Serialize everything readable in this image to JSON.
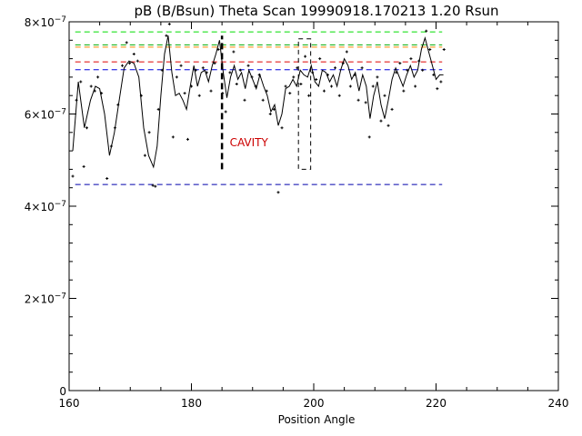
{
  "chart_data": {
    "type": "scatter",
    "title": "pB (B/Bsun) Theta Scan 19990918.170213 1.20 Rsun",
    "xlabel": "Position Angle",
    "ylabel": "",
    "xlim": [
      160,
      240
    ],
    "ylim": [
      0,
      8e-07
    ],
    "x_ticks": [
      160,
      180,
      200,
      220,
      240
    ],
    "y_ticks": [
      {
        "value": 0,
        "mant": "0",
        "exp": ""
      },
      {
        "value": 2e-07,
        "mant": "2×10",
        "exp": "−7"
      },
      {
        "value": 4e-07,
        "mant": "4×10",
        "exp": "−7"
      },
      {
        "value": 6e-07,
        "mant": "6×10",
        "exp": "−7"
      },
      {
        "value": 8e-07,
        "mant": "8×10",
        "exp": "−7"
      }
    ],
    "annotation": {
      "text": "CAVITY",
      "x": 189.4,
      "y": 5.3e-07,
      "color": "#cc0000"
    },
    "reference_lines": [
      {
        "y": 7.78e-07,
        "x": [
          161,
          221
        ],
        "color": "#00dd00"
      },
      {
        "y": 7.5e-07,
        "x": [
          161,
          221
        ],
        "color": "#00aa00"
      },
      {
        "y": 7.45e-07,
        "x": [
          161,
          221
        ],
        "color": "#ff8800"
      },
      {
        "y": 7.13e-07,
        "x": [
          161,
          221
        ],
        "color": "#dd0000"
      },
      {
        "y": 6.96e-07,
        "x": [
          161,
          221
        ],
        "color": "#0000dd"
      },
      {
        "y": 4.47e-07,
        "x": [
          161,
          221
        ],
        "color": "#0000aa"
      }
    ],
    "vertical_marker": {
      "x": 185.0,
      "y": [
        4.8e-07,
        7.7e-07
      ]
    },
    "cavity_box": {
      "x": [
        197.5,
        199.5
      ],
      "y": [
        4.8e-07,
        7.63e-07
      ]
    },
    "series": [
      {
        "kind": "points",
        "x": [
          160.6,
          161.2,
          161.9,
          162.4,
          162.9,
          163.6,
          164.2,
          164.7,
          165.3,
          166.2,
          166.9,
          167.5,
          168.0,
          168.7,
          169.4,
          169.9,
          170.6,
          171.2,
          171.8,
          172.4,
          173.1,
          173.7,
          174.1,
          174.6,
          175.2,
          175.9,
          176.4,
          177.0,
          177.6,
          178.3,
          178.9,
          179.4,
          180.0,
          180.7,
          181.3,
          181.9,
          182.5,
          183.2,
          183.8,
          184.4,
          185.1,
          185.6,
          186.3,
          186.9,
          187.4,
          188.0,
          188.7,
          189.3,
          189.9,
          190.5,
          191.1,
          191.7,
          192.3,
          192.9,
          193.5,
          194.2,
          194.8,
          195.4,
          196.1,
          196.7,
          197.3,
          197.9,
          198.6,
          199.2,
          199.8,
          200.4,
          201.0,
          201.7,
          202.3,
          202.9,
          203.5,
          204.2,
          204.8,
          205.4,
          206.0,
          206.7,
          207.3,
          207.9,
          208.5,
          209.1,
          209.7,
          210.4,
          211.0,
          211.6,
          212.2,
          212.8,
          213.5,
          214.1,
          214.7,
          215.3,
          215.9,
          216.6,
          217.2,
          217.8,
          218.4,
          219.0,
          219.6,
          220.2,
          220.8,
          221.3
        ],
        "y": [
          4.65e-07,
          6.3e-07,
          6.7e-07,
          4.86e-07,
          5.7e-07,
          6.6e-07,
          6.5e-07,
          6.8e-07,
          6.45e-07,
          4.6e-07,
          5.3e-07,
          5.7e-07,
          6.2e-07,
          7.05e-07,
          7.55e-07,
          7.1e-07,
          7.3e-07,
          7.15e-07,
          6.4e-07,
          5.1e-07,
          5.6e-07,
          4.45e-07,
          4.43e-07,
          6.1e-07,
          6.95e-07,
          7.7e-07,
          7.95e-07,
          5.5e-07,
          6.8e-07,
          7.05e-07,
          6.45e-07,
          5.45e-07,
          6.6e-07,
          6.95e-07,
          6.4e-07,
          7e-07,
          6.9e-07,
          6.5e-07,
          7.1e-07,
          7.4e-07,
          6.45e-07,
          6.05e-07,
          6.9e-07,
          7.35e-07,
          6.65e-07,
          6.95e-07,
          6.3e-07,
          7.05e-07,
          6.8e-07,
          6.6e-07,
          6.85e-07,
          6.3e-07,
          6.5e-07,
          6e-07,
          6.1e-07,
          4.3e-07,
          5.7e-07,
          6.6e-07,
          6.45e-07,
          6.8e-07,
          7e-07,
          6.65e-07,
          7.25e-07,
          6.4e-07,
          6.9e-07,
          6.75e-07,
          7.2e-07,
          6.5e-07,
          6.85e-07,
          6.6e-07,
          7e-07,
          6.4e-07,
          7.1e-07,
          7.35e-07,
          6.6e-07,
          6.85e-07,
          6.3e-07,
          7e-07,
          6.25e-07,
          5.5e-07,
          6.6e-07,
          6.8e-07,
          5.85e-07,
          6.4e-07,
          5.75e-07,
          6.1e-07,
          6.9e-07,
          7.1e-07,
          6.5e-07,
          6.95e-07,
          7.2e-07,
          6.6e-07,
          7.15e-07,
          6.95e-07,
          7.8e-07,
          7.4e-07,
          6.85e-07,
          6.55e-07,
          6.7e-07,
          7.4e-07
        ]
      },
      {
        "kind": "smooth",
        "x": [
          160.6,
          161.5,
          162.5,
          163.5,
          164.3,
          165.0,
          165.8,
          166.6,
          167.4,
          168.2,
          169.0,
          169.8,
          170.6,
          171.4,
          172.2,
          173.0,
          173.8,
          174.4,
          175.0,
          175.6,
          176.2,
          176.8,
          177.4,
          178.0,
          178.6,
          179.2,
          179.8,
          180.4,
          181.0,
          181.6,
          182.2,
          182.8,
          183.4,
          184.0,
          184.6,
          185.2,
          185.8,
          186.4,
          187.0,
          187.6,
          188.2,
          188.8,
          189.4,
          190.0,
          190.6,
          191.2,
          191.8,
          192.4,
          193.0,
          193.6,
          194.2,
          194.8,
          195.4,
          196.0,
          196.6,
          197.2,
          197.8,
          198.4,
          199.0,
          199.6,
          200.2,
          200.8,
          201.4,
          202.0,
          202.6,
          203.2,
          203.8,
          204.4,
          205.0,
          205.6,
          206.2,
          206.8,
          207.4,
          208.0,
          208.6,
          209.2,
          209.8,
          210.4,
          211.0,
          211.6,
          212.2,
          212.8,
          213.4,
          214.0,
          214.6,
          215.2,
          215.8,
          216.4,
          217.0,
          217.6,
          218.2,
          218.8,
          219.4,
          220.0,
          220.6,
          221.2
        ],
        "y": [
          5.2e-07,
          6.7e-07,
          5.7e-07,
          6.3e-07,
          6.6e-07,
          6.55e-07,
          6e-07,
          5.1e-07,
          5.6e-07,
          6.3e-07,
          7e-07,
          7.15e-07,
          7.1e-07,
          6.8e-07,
          5.7e-07,
          5.1e-07,
          4.85e-07,
          5.3e-07,
          6.4e-07,
          7.3e-07,
          7.7e-07,
          6.9e-07,
          6.4e-07,
          6.45e-07,
          6.3e-07,
          6.1e-07,
          6.6e-07,
          7.05e-07,
          6.6e-07,
          6.9e-07,
          6.95e-07,
          6.7e-07,
          7.05e-07,
          7.3e-07,
          7.6e-07,
          6.9e-07,
          6.35e-07,
          6.8e-07,
          7.05e-07,
          6.75e-07,
          6.9e-07,
          6.55e-07,
          6.95e-07,
          6.75e-07,
          6.55e-07,
          6.85e-07,
          6.6e-07,
          6.4e-07,
          6.05e-07,
          6.2e-07,
          5.75e-07,
          6e-07,
          6.55e-07,
          6.6e-07,
          6.75e-07,
          6.6e-07,
          6.95e-07,
          6.85e-07,
          6.8e-07,
          7.05e-07,
          6.7e-07,
          6.6e-07,
          6.95e-07,
          6.9e-07,
          6.7e-07,
          6.85e-07,
          6.6e-07,
          6.95e-07,
          7.2e-07,
          7.05e-07,
          6.75e-07,
          6.9e-07,
          6.5e-07,
          6.85e-07,
          6.6e-07,
          5.9e-07,
          6.4e-07,
          6.7e-07,
          6.2e-07,
          5.9e-07,
          6.3e-07,
          6.75e-07,
          7e-07,
          6.8e-07,
          6.6e-07,
          6.85e-07,
          7.05e-07,
          6.8e-07,
          6.95e-07,
          7.4e-07,
          7.65e-07,
          7.35e-07,
          7.05e-07,
          6.75e-07,
          6.85e-07,
          6.85e-07
        ]
      }
    ]
  }
}
